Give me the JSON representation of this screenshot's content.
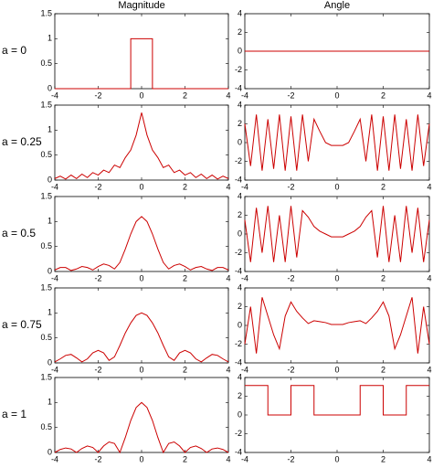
{
  "row_labels": [
    "a = 0",
    "a = 0.25",
    "a = 0.5",
    "a = 0.75",
    "a = 1"
  ],
  "chart_data": [
    {
      "type": "line",
      "title": "Magnitude",
      "x": [
        -4,
        -0.5,
        -0.5,
        0.5,
        0.5,
        4
      ],
      "values": [
        0,
        0,
        1,
        1,
        0,
        0
      ],
      "color": "#cc0000",
      "xlim": [
        -4,
        4
      ],
      "xticks": [
        -4,
        -2,
        0,
        2,
        4
      ],
      "ylim": [
        0,
        1.5
      ],
      "yticks": [
        0,
        0.5,
        1,
        1.5
      ]
    },
    {
      "type": "line",
      "title": "Angle",
      "x": [
        -4,
        4
      ],
      "values": [
        0,
        0
      ],
      "color": "#cc0000",
      "xlim": [
        -4,
        4
      ],
      "xticks": [
        -4,
        -2,
        0,
        2,
        4
      ],
      "ylim": [
        -4,
        4
      ],
      "yticks": [
        -4,
        -2,
        0,
        2,
        4
      ]
    },
    {
      "type": "line",
      "x": [
        -4,
        -3.75,
        -3.5,
        -3.25,
        -3,
        -2.75,
        -2.5,
        -2.25,
        -2,
        -1.75,
        -1.5,
        -1.25,
        -1,
        -0.75,
        -0.5,
        -0.25,
        0,
        0.25,
        0.5,
        0.75,
        1,
        1.25,
        1.5,
        1.75,
        2,
        2.25,
        2.5,
        2.75,
        3,
        3.25,
        3.5,
        3.75,
        4
      ],
      "values": [
        0.03,
        0.08,
        0.02,
        0.1,
        0.03,
        0.12,
        0.05,
        0.15,
        0.1,
        0.2,
        0.15,
        0.3,
        0.25,
        0.45,
        0.6,
        0.9,
        1.35,
        0.9,
        0.6,
        0.45,
        0.25,
        0.3,
        0.15,
        0.2,
        0.1,
        0.15,
        0.05,
        0.12,
        0.03,
        0.1,
        0.02,
        0.08,
        0.03
      ],
      "color": "#cc0000",
      "xlim": [
        -4,
        4
      ],
      "xticks": [
        -4,
        -2,
        0,
        2,
        4
      ],
      "ylim": [
        0,
        1.5
      ],
      "yticks": [
        0,
        0.5,
        1,
        1.5
      ]
    },
    {
      "type": "line",
      "x": [
        -4,
        -3.75,
        -3.5,
        -3.25,
        -3,
        -2.75,
        -2.5,
        -2.25,
        -2,
        -1.75,
        -1.5,
        -1.25,
        -1,
        -0.75,
        -0.5,
        -0.25,
        0,
        0.25,
        0.5,
        0.75,
        1,
        1.25,
        1.5,
        1.75,
        2,
        2.25,
        2.5,
        2.75,
        3,
        3.25,
        3.5,
        3.75,
        4
      ],
      "values": [
        2,
        -2.5,
        3,
        -3,
        2.5,
        -2.8,
        3,
        -3,
        2.8,
        -3,
        3,
        -2,
        2.5,
        1.2,
        0,
        -0.3,
        -0.3,
        -0.3,
        0,
        1.2,
        2.5,
        -2,
        3,
        -3,
        2.8,
        -3,
        3,
        -2.8,
        2.5,
        -3,
        3,
        -2.5,
        2
      ],
      "color": "#cc0000",
      "xlim": [
        -4,
        4
      ],
      "xticks": [
        -4,
        -2,
        0,
        2,
        4
      ],
      "ylim": [
        -4,
        4
      ],
      "yticks": [
        -4,
        -2,
        0,
        2,
        4
      ]
    },
    {
      "type": "line",
      "x": [
        -4,
        -3.75,
        -3.5,
        -3.25,
        -3,
        -2.75,
        -2.5,
        -2.25,
        -2,
        -1.75,
        -1.5,
        -1.25,
        -1,
        -0.75,
        -0.5,
        -0.25,
        0,
        0.25,
        0.5,
        0.75,
        1,
        1.25,
        1.5,
        1.75,
        2,
        2.25,
        2.5,
        2.75,
        3,
        3.25,
        3.5,
        3.75,
        4
      ],
      "values": [
        0.03,
        0.08,
        0.08,
        0.02,
        0.05,
        0.1,
        0.08,
        0.03,
        0.1,
        0.15,
        0.12,
        0.05,
        0.18,
        0.45,
        0.75,
        1.0,
        1.1,
        1.0,
        0.75,
        0.45,
        0.18,
        0.05,
        0.12,
        0.15,
        0.1,
        0.03,
        0.08,
        0.1,
        0.05,
        0.02,
        0.08,
        0.08,
        0.03
      ],
      "color": "#cc0000",
      "xlim": [
        -4,
        4
      ],
      "xticks": [
        -4,
        -2,
        0,
        2,
        4
      ],
      "ylim": [
        0,
        1.5
      ],
      "yticks": [
        0,
        0.5,
        1,
        1.5
      ]
    },
    {
      "type": "line",
      "x": [
        -4,
        -3.75,
        -3.5,
        -3.25,
        -3,
        -2.75,
        -2.5,
        -2.25,
        -2,
        -1.75,
        -1.5,
        -1.25,
        -1,
        -0.75,
        -0.5,
        -0.25,
        0,
        0.25,
        0.5,
        0.75,
        1,
        1.25,
        1.5,
        1.75,
        2,
        2.25,
        2.5,
        2.75,
        3,
        3.25,
        3.5,
        3.75,
        4
      ],
      "values": [
        1.5,
        -3,
        2.8,
        -2,
        3,
        -3,
        2,
        -3,
        3,
        -2.5,
        2.5,
        1.8,
        0.8,
        0.3,
        0,
        -0.3,
        -0.3,
        -0.3,
        0,
        0.3,
        0.8,
        1.8,
        2.5,
        -2.5,
        3,
        -3,
        2,
        -3,
        3,
        -2,
        2.8,
        -3,
        1.5
      ],
      "color": "#cc0000",
      "xlim": [
        -4,
        4
      ],
      "xticks": [
        -4,
        -2,
        0,
        2,
        4
      ],
      "ylim": [
        -4,
        4
      ],
      "yticks": [
        -4,
        -2,
        0,
        2,
        4
      ]
    },
    {
      "type": "line",
      "x": [
        -4,
        -3.75,
        -3.5,
        -3.25,
        -3,
        -2.75,
        -2.5,
        -2.25,
        -2,
        -1.75,
        -1.5,
        -1.25,
        -1,
        -0.75,
        -0.5,
        -0.25,
        0,
        0.25,
        0.5,
        0.75,
        1,
        1.25,
        1.5,
        1.75,
        2,
        2.25,
        2.5,
        2.75,
        3,
        3.25,
        3.5,
        3.75,
        4
      ],
      "values": [
        0.02,
        0.08,
        0.15,
        0.17,
        0.1,
        0.02,
        0.08,
        0.2,
        0.25,
        0.2,
        0.05,
        0.12,
        0.35,
        0.6,
        0.8,
        0.95,
        1.0,
        0.95,
        0.8,
        0.6,
        0.35,
        0.12,
        0.05,
        0.2,
        0.25,
        0.2,
        0.08,
        0.02,
        0.1,
        0.17,
        0.15,
        0.08,
        0.02
      ],
      "color": "#cc0000",
      "xlim": [
        -4,
        4
      ],
      "xticks": [
        -4,
        -2,
        0,
        2,
        4
      ],
      "ylim": [
        0,
        1.5
      ],
      "yticks": [
        0,
        0.5,
        1,
        1.5
      ]
    },
    {
      "type": "line",
      "x": [
        -4,
        -3.75,
        -3.5,
        -3.25,
        -3,
        -2.75,
        -2.5,
        -2.25,
        -2,
        -1.75,
        -1.5,
        -1.25,
        -1,
        -0.75,
        -0.5,
        -0.25,
        0,
        0.25,
        0.5,
        0.75,
        1,
        1.25,
        1.5,
        1.75,
        2,
        2.25,
        2.5,
        2.75,
        3,
        3.25,
        3.5,
        3.75,
        4
      ],
      "values": [
        -2,
        2,
        -3,
        3,
        1,
        -1,
        -2.5,
        1,
        2.5,
        1.5,
        0.8,
        0.2,
        0.5,
        0.4,
        0.3,
        0.1,
        0.1,
        0.1,
        0.3,
        0.4,
        0.5,
        0.2,
        0.8,
        1.5,
        2.5,
        1,
        -2.5,
        -1,
        1,
        3,
        -3,
        2,
        -2
      ],
      "color": "#cc0000",
      "xlim": [
        -4,
        4
      ],
      "xticks": [
        -4,
        -2,
        0,
        2,
        4
      ],
      "ylim": [
        -4,
        4
      ],
      "yticks": [
        -4,
        -2,
        0,
        2,
        4
      ]
    },
    {
      "type": "line",
      "x": [
        -4,
        -3.75,
        -3.5,
        -3.25,
        -3,
        -2.75,
        -2.5,
        -2.25,
        -2,
        -1.75,
        -1.5,
        -1.25,
        -1,
        -0.75,
        -0.5,
        -0.25,
        0,
        0.25,
        0.5,
        0.75,
        1,
        1.25,
        1.5,
        1.75,
        2,
        2.25,
        2.5,
        2.75,
        3,
        3.25,
        3.5,
        3.75,
        4
      ],
      "values": [
        0,
        0.06,
        0.09,
        0.07,
        0,
        0.08,
        0.13,
        0.1,
        0,
        0.13,
        0.21,
        0.18,
        0,
        0.3,
        0.64,
        0.9,
        1,
        0.9,
        0.64,
        0.3,
        0,
        0.18,
        0.21,
        0.13,
        0,
        0.1,
        0.13,
        0.08,
        0,
        0.07,
        0.09,
        0.06,
        0
      ],
      "color": "#cc0000",
      "xlim": [
        -4,
        4
      ],
      "xticks": [
        -4,
        -2,
        0,
        2,
        4
      ],
      "ylim": [
        0,
        1.5
      ],
      "yticks": [
        0,
        0.5,
        1,
        1.5
      ]
    },
    {
      "type": "line",
      "x": [
        -4,
        -3,
        -3,
        -2,
        -2,
        -1,
        -1,
        1,
        1,
        2,
        2,
        3,
        3,
        4
      ],
      "values": [
        3.14,
        3.14,
        0,
        0,
        3.14,
        3.14,
        0,
        0,
        3.14,
        3.14,
        0,
        0,
        3.14,
        3.14
      ],
      "color": "#cc0000",
      "xlim": [
        -4,
        4
      ],
      "xticks": [
        -4,
        -2,
        0,
        2,
        4
      ],
      "ylim": [
        -4,
        4
      ],
      "yticks": [
        -4,
        -2,
        0,
        2,
        4
      ]
    }
  ]
}
